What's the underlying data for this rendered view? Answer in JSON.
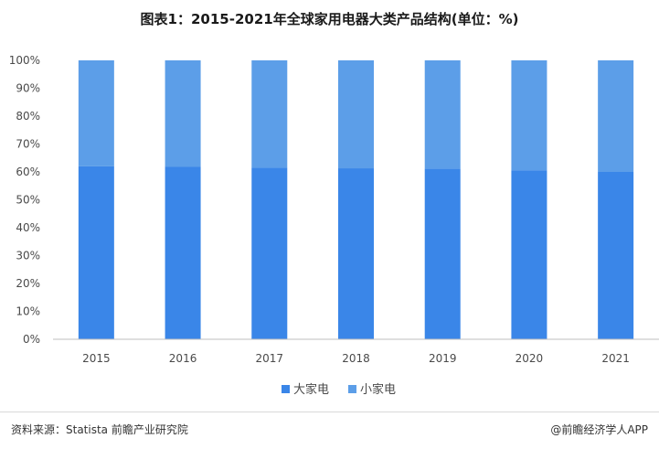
{
  "title": "图表1：2015-2021年全球家用电器大类产品结构(单位：%)",
  "source": "资料来源：Statista 前瞻产业研究院",
  "brand": "@前瞻经济学人APP",
  "colors": {
    "large": "#3a86e8",
    "small": "#5c9ee8",
    "axis": "#bfbfbf",
    "text": "#4a4a4a"
  },
  "chart_data": {
    "type": "bar",
    "stacked": true,
    "categories": [
      "2015",
      "2016",
      "2017",
      "2018",
      "2019",
      "2020",
      "2021"
    ],
    "series": [
      {
        "name": "大家电",
        "values": [
          62,
          61.8,
          61.5,
          61.3,
          61.2,
          60.6,
          60
        ]
      },
      {
        "name": "小家电",
        "values": [
          38,
          38.2,
          38.5,
          38.7,
          38.8,
          39.4,
          40
        ]
      }
    ],
    "yticks": [
      "0%",
      "10%",
      "20%",
      "30%",
      "40%",
      "50%",
      "60%",
      "70%",
      "80%",
      "90%",
      "100%"
    ],
    "ylim": [
      0,
      100
    ],
    "legend_position": "bottom",
    "grid": false
  }
}
